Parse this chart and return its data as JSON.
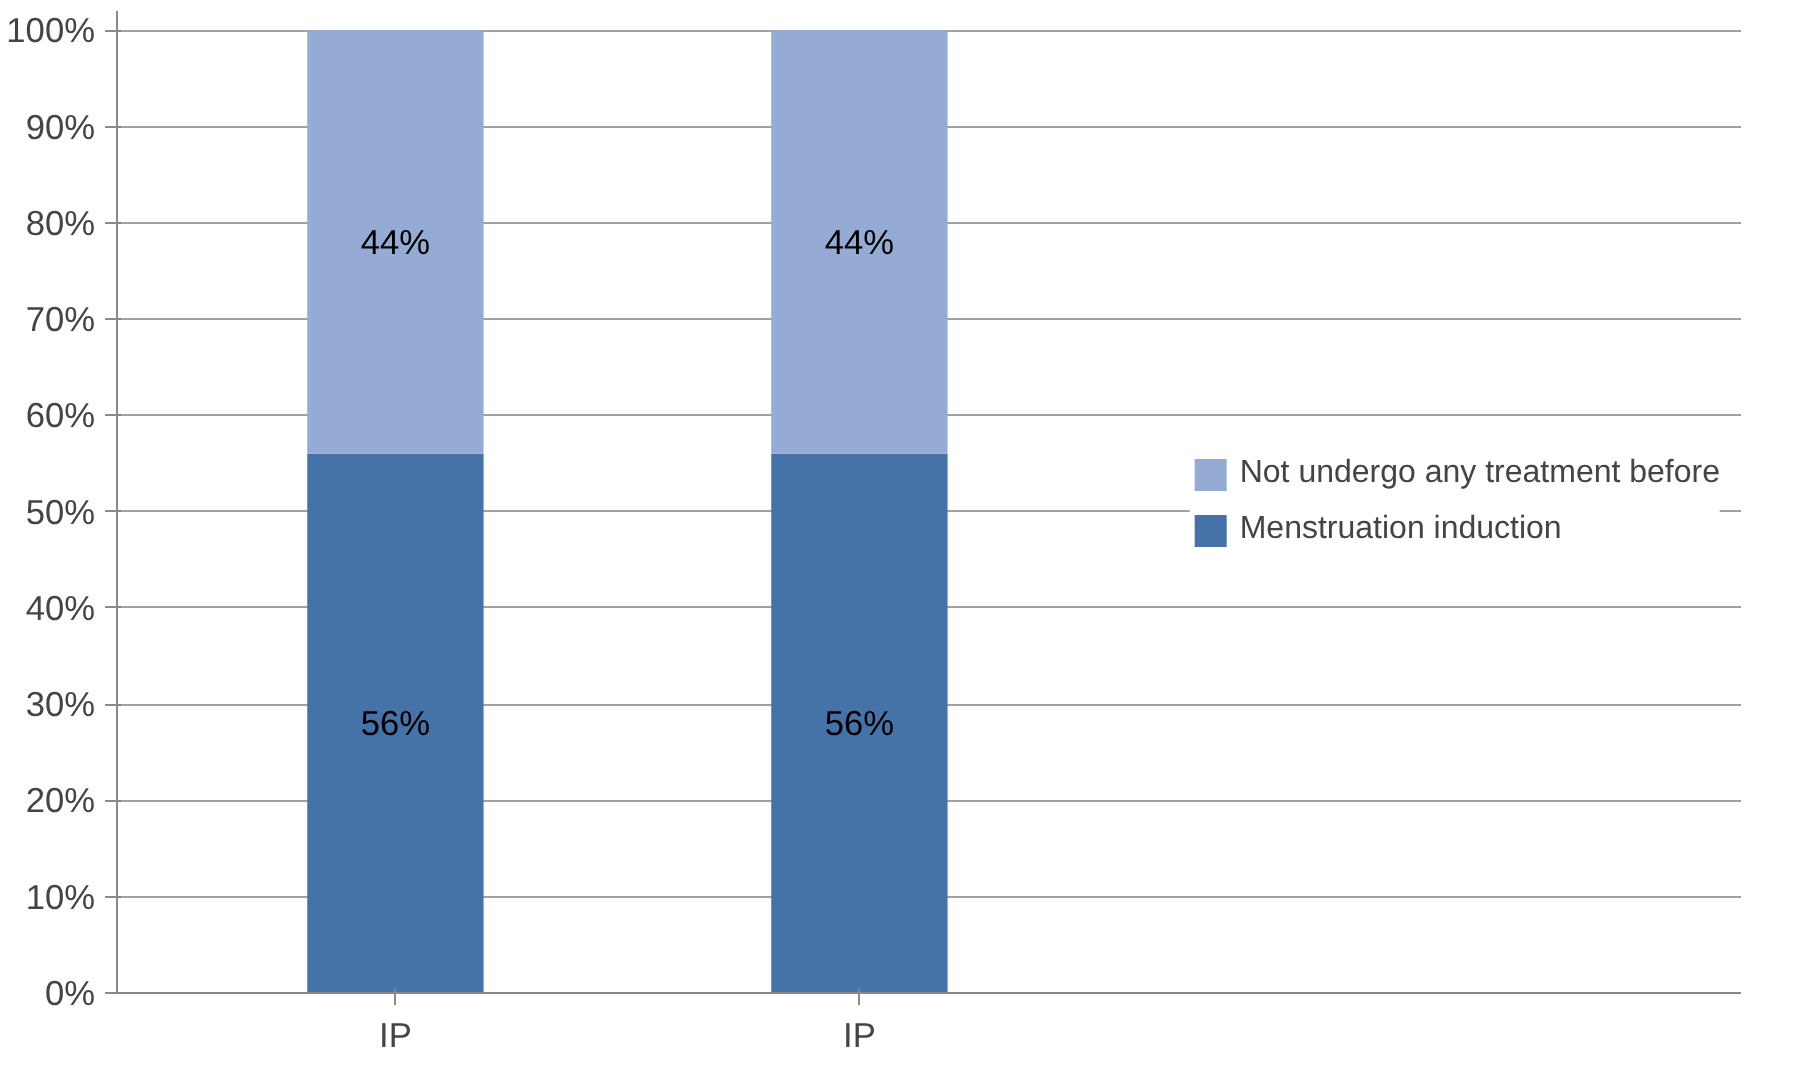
{
  "chart_data": {
    "type": "bar",
    "stacked": true,
    "categories": [
      "IP",
      "IP"
    ],
    "series": [
      {
        "name": "Menstruation induction",
        "color": "#4572a7",
        "values": [
          56,
          56
        ],
        "value_labels": [
          "56%",
          "56%"
        ]
      },
      {
        "name": "Not undergo any treatment before",
        "color": "#95abd4",
        "values": [
          44,
          44
        ],
        "value_labels": [
          "44%",
          "44%"
        ]
      }
    ],
    "ylim": [
      0,
      100
    ],
    "yticks": [
      {
        "value": 0,
        "label": "0%"
      },
      {
        "value": 10,
        "label": "10%"
      },
      {
        "value": 20,
        "label": "20%"
      },
      {
        "value": 30,
        "label": "30%"
      },
      {
        "value": 40,
        "label": "40%"
      },
      {
        "value": 50,
        "label": "50%"
      },
      {
        "value": 60,
        "label": "60%"
      },
      {
        "value": 70,
        "label": "70%"
      },
      {
        "value": 80,
        "label": "80%"
      },
      {
        "value": 90,
        "label": "90%"
      },
      {
        "value": 100,
        "label": "100%"
      }
    ],
    "grid": "y",
    "legend": "right"
  }
}
